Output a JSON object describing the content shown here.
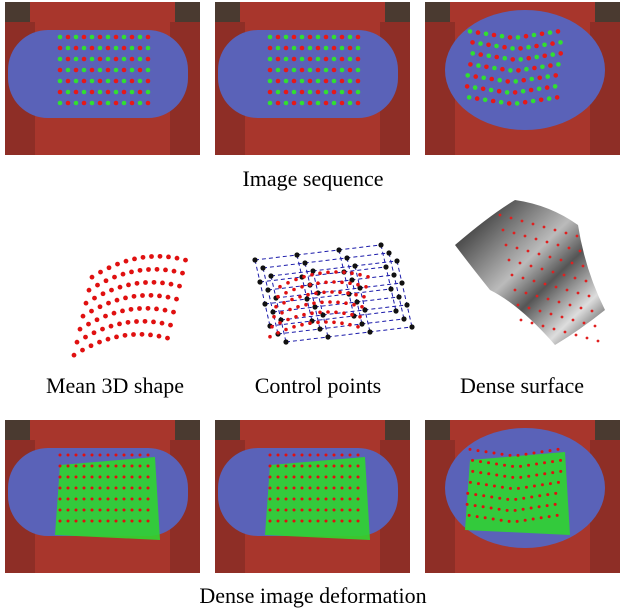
{
  "top_row": {
    "caption": "Image sequence"
  },
  "middle_row": {
    "labels": [
      "Mean 3D shape",
      "Control points",
      "Dense surface"
    ]
  },
  "bottom_row": {
    "caption": "Dense image deformation"
  }
}
